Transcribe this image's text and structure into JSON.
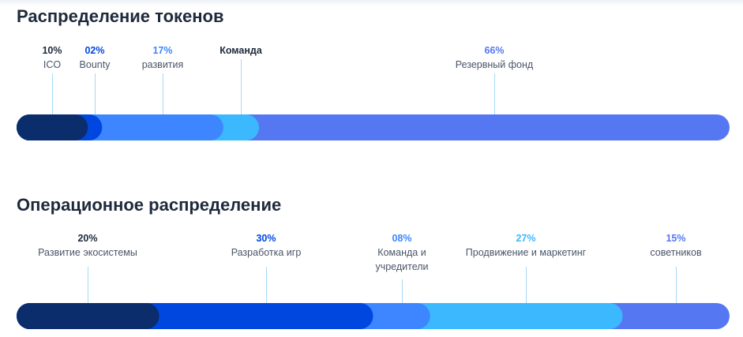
{
  "colors": {
    "tokens": [
      "#0b2d6b",
      "#0047e0",
      "#3d86ff",
      "#3cb8ff",
      "#5578f2"
    ],
    "ops": [
      "#0b2d6b",
      "#0047e0",
      "#3d86ff",
      "#3cb8ff",
      "#5578f2"
    ],
    "pct_text": [
      "#1e2a3c",
      "#0047e0",
      "#3d86ff",
      "#1e2a3c",
      "#5578f2"
    ],
    "ops_pct_text": [
      "#1e2a3c",
      "#0047e0",
      "#3d86ff",
      "#3cb8ff",
      "#5578f2"
    ]
  },
  "chart_data": [
    {
      "type": "bar",
      "title": "Распределение токенов",
      "orientation": "horizontal-stacked",
      "categories": [
        "ICO",
        "Bounty",
        "развития",
        "Команда",
        "Резервный фонд"
      ],
      "value_labels": [
        "10%",
        "02%",
        "17%",
        "",
        "66%"
      ],
      "values": [
        10,
        2,
        17,
        5,
        66
      ],
      "ylim": [
        0,
        100
      ]
    },
    {
      "type": "bar",
      "title": "Операционное распределение",
      "orientation": "horizontal-stacked",
      "categories": [
        "Развитие экосистемы",
        "Разработка игр",
        "Команда и учредители",
        "Продвижение и маркетинг",
        "советников"
      ],
      "category_lines": [
        [
          "Развитие экосистемы"
        ],
        [
          "Разработка игр"
        ],
        [
          "Команда и",
          "учредители"
        ],
        [
          "Продвижение и маркетинг"
        ],
        [
          "советников"
        ]
      ],
      "value_labels": [
        "20%",
        "30%",
        "08%",
        "27%",
        "15%"
      ],
      "values": [
        20,
        30,
        8,
        27,
        15
      ],
      "ylim": [
        0,
        100
      ]
    }
  ]
}
